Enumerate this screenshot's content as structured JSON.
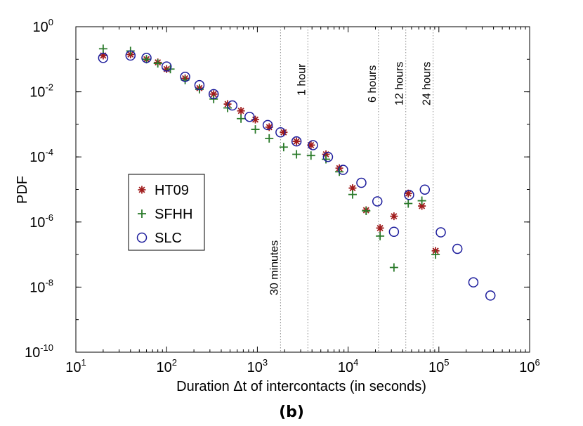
{
  "chart_data": {
    "type": "scatter",
    "title": "",
    "panel_label": "(b)",
    "xlabel": "Duration Δt of intercontacts (in seconds)",
    "ylabel": "PDF",
    "xscale": "log",
    "yscale": "log",
    "xlim": [
      10,
      1000000
    ],
    "ylim": [
      1e-10,
      1
    ],
    "x_ticks": [
      {
        "value": 10,
        "base": "10",
        "exp": "1"
      },
      {
        "value": 100,
        "base": "10",
        "exp": "2"
      },
      {
        "value": 1000,
        "base": "10",
        "exp": "3"
      },
      {
        "value": 10000,
        "base": "10",
        "exp": "4"
      },
      {
        "value": 100000,
        "base": "10",
        "exp": "5"
      },
      {
        "value": 1000000,
        "base": "10",
        "exp": "6"
      }
    ],
    "y_ticks": [
      {
        "value": 1,
        "base": "10",
        "exp": "0"
      },
      {
        "value": 0.01,
        "base": "10",
        "exp": "-2"
      },
      {
        "value": 0.0001,
        "base": "10",
        "exp": "-4"
      },
      {
        "value": 1e-06,
        "base": "10",
        "exp": "-6"
      },
      {
        "value": 1e-08,
        "base": "10",
        "exp": "-8"
      },
      {
        "value": 1e-10,
        "base": "10",
        "exp": "-10"
      }
    ],
    "grid": false,
    "legend_position": "middle-left",
    "reference_lines": [
      {
        "x": 1800,
        "label": "30 minutes"
      },
      {
        "x": 3600,
        "label": "1 hour"
      },
      {
        "x": 21600,
        "label": "6 hours"
      },
      {
        "x": 43200,
        "label": "12 hours"
      },
      {
        "x": 86400,
        "label": "24 hours"
      }
    ],
    "series": [
      {
        "name": "HT09",
        "marker": "asterisk",
        "color": "#a01c1c",
        "points": [
          [
            20,
            0.13
          ],
          [
            40,
            0.14
          ],
          [
            60,
            0.1
          ],
          [
            80,
            0.08
          ],
          [
            100,
            0.05
          ],
          [
            160,
            0.026
          ],
          [
            230,
            0.013
          ],
          [
            330,
            0.0085
          ],
          [
            470,
            0.0042
          ],
          [
            660,
            0.0026
          ],
          [
            950,
            0.0014
          ],
          [
            1350,
            0.00082
          ],
          [
            1950,
            0.00057
          ],
          [
            2700,
            0.0003
          ],
          [
            3900,
            0.00023
          ],
          [
            5700,
            0.00012
          ],
          [
            8000,
            4.5e-05
          ],
          [
            11200,
            1.1e-05
          ],
          [
            15800,
            2.3e-06
          ],
          [
            22500,
            6.5e-07
          ],
          [
            32000,
            1.5e-06
          ],
          [
            46000,
            7.5e-06
          ],
          [
            65000,
            3.1e-06
          ],
          [
            92000,
            1.3e-07
          ]
        ]
      },
      {
        "name": "SFHH",
        "marker": "plus",
        "color": "#2a7a2a",
        "points": [
          [
            20,
            0.21
          ],
          [
            40,
            0.18
          ],
          [
            60,
            0.1
          ],
          [
            80,
            0.075
          ],
          [
            110,
            0.05
          ],
          [
            160,
            0.023
          ],
          [
            230,
            0.012
          ],
          [
            330,
            0.006
          ],
          [
            470,
            0.0032
          ],
          [
            660,
            0.0015
          ],
          [
            950,
            0.0007
          ],
          [
            1350,
            0.00037
          ],
          [
            1950,
            0.0002
          ],
          [
            2700,
            0.00012
          ],
          [
            3900,
            0.00011
          ],
          [
            5700,
            8.5e-05
          ],
          [
            8000,
            3.5e-05
          ],
          [
            11200,
            7e-06
          ],
          [
            15800,
            2.2e-06
          ],
          [
            22500,
            3.7e-07
          ],
          [
            32000,
            4e-08
          ],
          [
            46000,
            3.7e-06
          ],
          [
            65000,
            4.5e-06
          ],
          [
            92000,
            1e-07
          ]
        ]
      },
      {
        "name": "SLC",
        "marker": "circle",
        "color": "#1c1c9c",
        "points": [
          [
            20,
            0.11
          ],
          [
            40,
            0.13
          ],
          [
            60,
            0.11
          ],
          [
            100,
            0.06
          ],
          [
            160,
            0.029
          ],
          [
            230,
            0.016
          ],
          [
            330,
            0.0085
          ],
          [
            530,
            0.0038
          ],
          [
            820,
            0.0017
          ],
          [
            1300,
            0.00095
          ],
          [
            1800,
            0.00057
          ],
          [
            2700,
            0.0003
          ],
          [
            4100,
            0.00023
          ],
          [
            6000,
            0.0001
          ],
          [
            8800,
            4e-05
          ],
          [
            14000,
            1.6e-05
          ],
          [
            21000,
            4.3e-06
          ],
          [
            32000,
            5e-07
          ],
          [
            47000,
            6.8e-06
          ],
          [
            70000,
            9.9e-06
          ],
          [
            105000,
            4.8e-07
          ],
          [
            160000,
            1.5e-07
          ],
          [
            240000,
            1.4e-08
          ],
          [
            370000,
            5.5e-09
          ]
        ]
      }
    ]
  }
}
